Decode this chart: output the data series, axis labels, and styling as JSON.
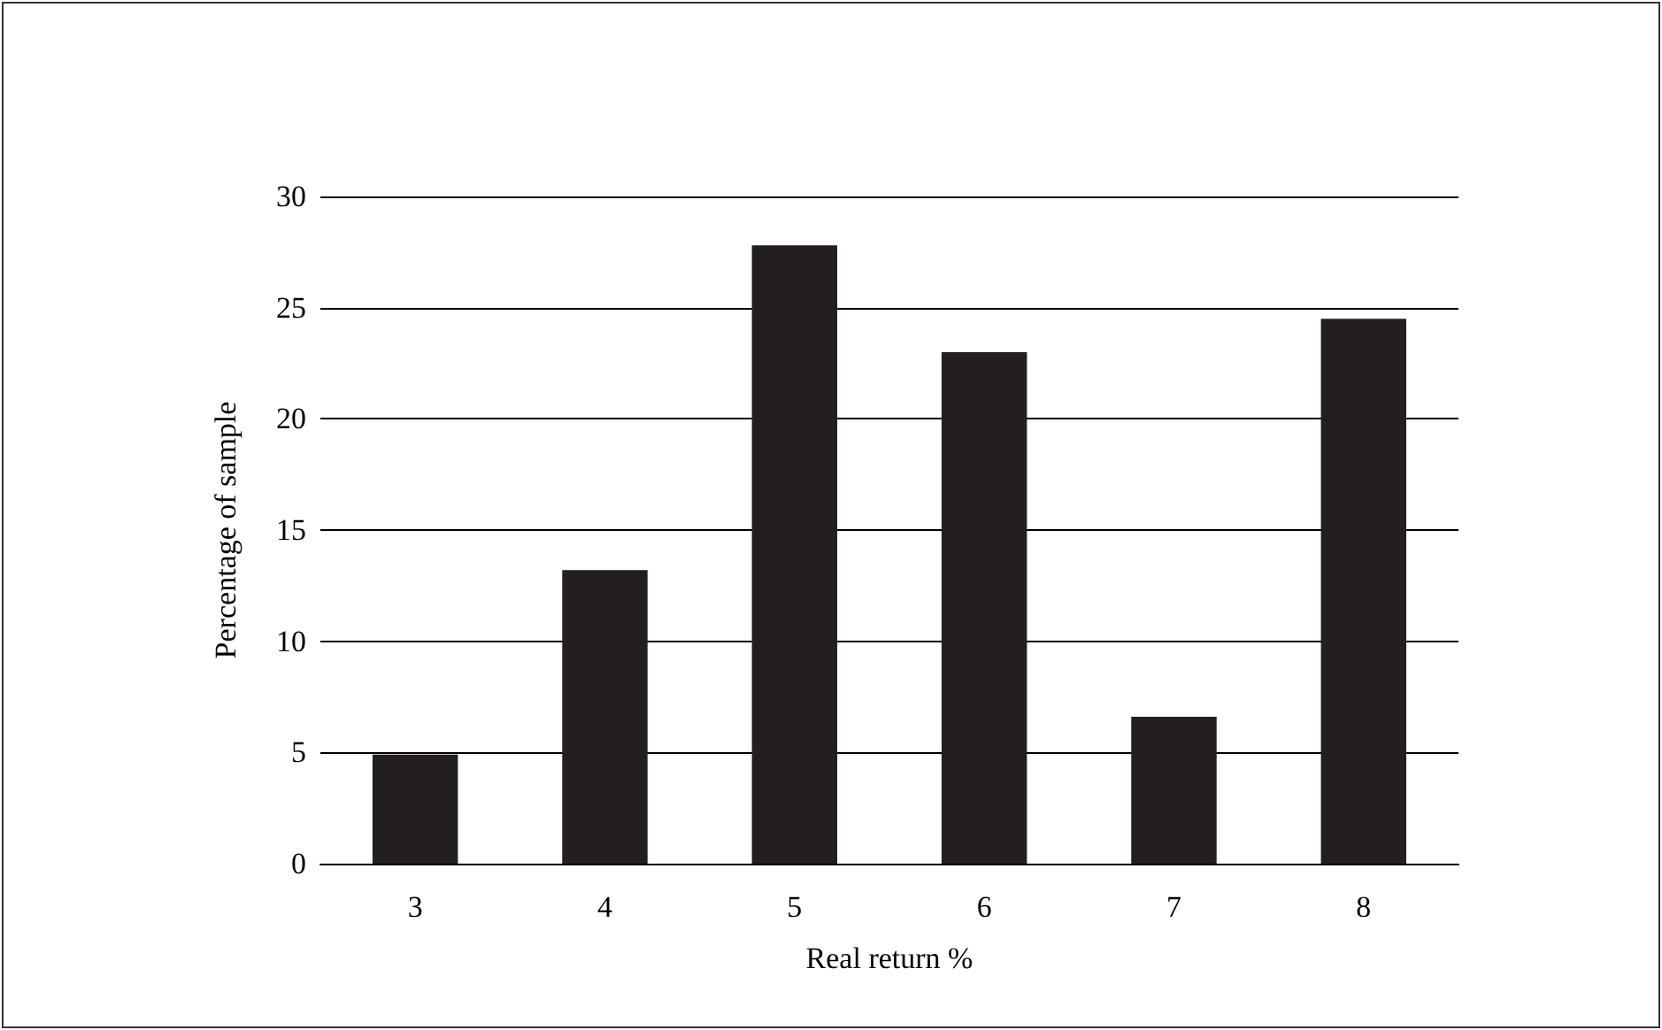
{
  "chart_data": {
    "type": "bar",
    "xlabel": "Real return %",
    "ylabel": "Percentage of sample",
    "categories": [
      "3",
      "4",
      "5",
      "6",
      "7",
      "8"
    ],
    "values": [
      4.9,
      13.2,
      27.8,
      23.0,
      6.6,
      24.5
    ],
    "color": "#231f20",
    "ylim": [
      0,
      30
    ],
    "yticks": [
      0,
      5,
      10,
      15,
      20,
      25,
      30
    ],
    "grid": "y"
  }
}
